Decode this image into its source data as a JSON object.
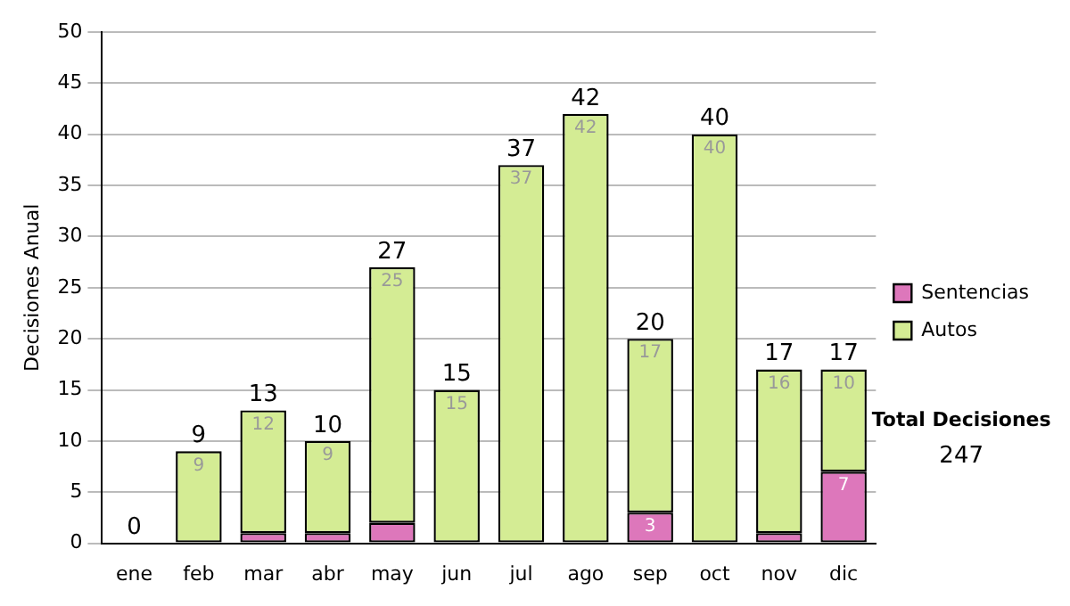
{
  "chart_data": {
    "type": "bar",
    "stacked": true,
    "ylabel": "Decisiones Anual",
    "categories": [
      "ene",
      "feb",
      "mar",
      "abr",
      "may",
      "jun",
      "jul",
      "ago",
      "sep",
      "oct",
      "nov",
      "dic"
    ],
    "series": [
      {
        "name": "Sentencias",
        "color": "#dd77bb",
        "values": [
          0,
          0,
          1,
          1,
          2,
          0,
          0,
          0,
          3,
          0,
          1,
          7
        ],
        "value_labels": [
          null,
          null,
          null,
          null,
          null,
          null,
          null,
          null,
          "3",
          null,
          null,
          "7"
        ]
      },
      {
        "name": "Autos",
        "color": "#d4ec94",
        "values": [
          0,
          9,
          12,
          9,
          25,
          15,
          37,
          42,
          17,
          40,
          16,
          10
        ],
        "value_labels": [
          null,
          "9",
          "12",
          "9",
          "25",
          "15",
          "37",
          "42",
          "17",
          "40",
          "16",
          "10"
        ]
      }
    ],
    "totals": [
      "0",
      "9",
      "13",
      "10",
      "27",
      "15",
      "37",
      "42",
      "20",
      "40",
      "17",
      "17"
    ],
    "ylim": [
      0,
      50
    ],
    "yticks": [
      0,
      5,
      10,
      15,
      20,
      25,
      30,
      35,
      40,
      45,
      50
    ],
    "grid": "y",
    "legend": "right",
    "annotations": [
      "Total Decisiones",
      "247"
    ]
  }
}
